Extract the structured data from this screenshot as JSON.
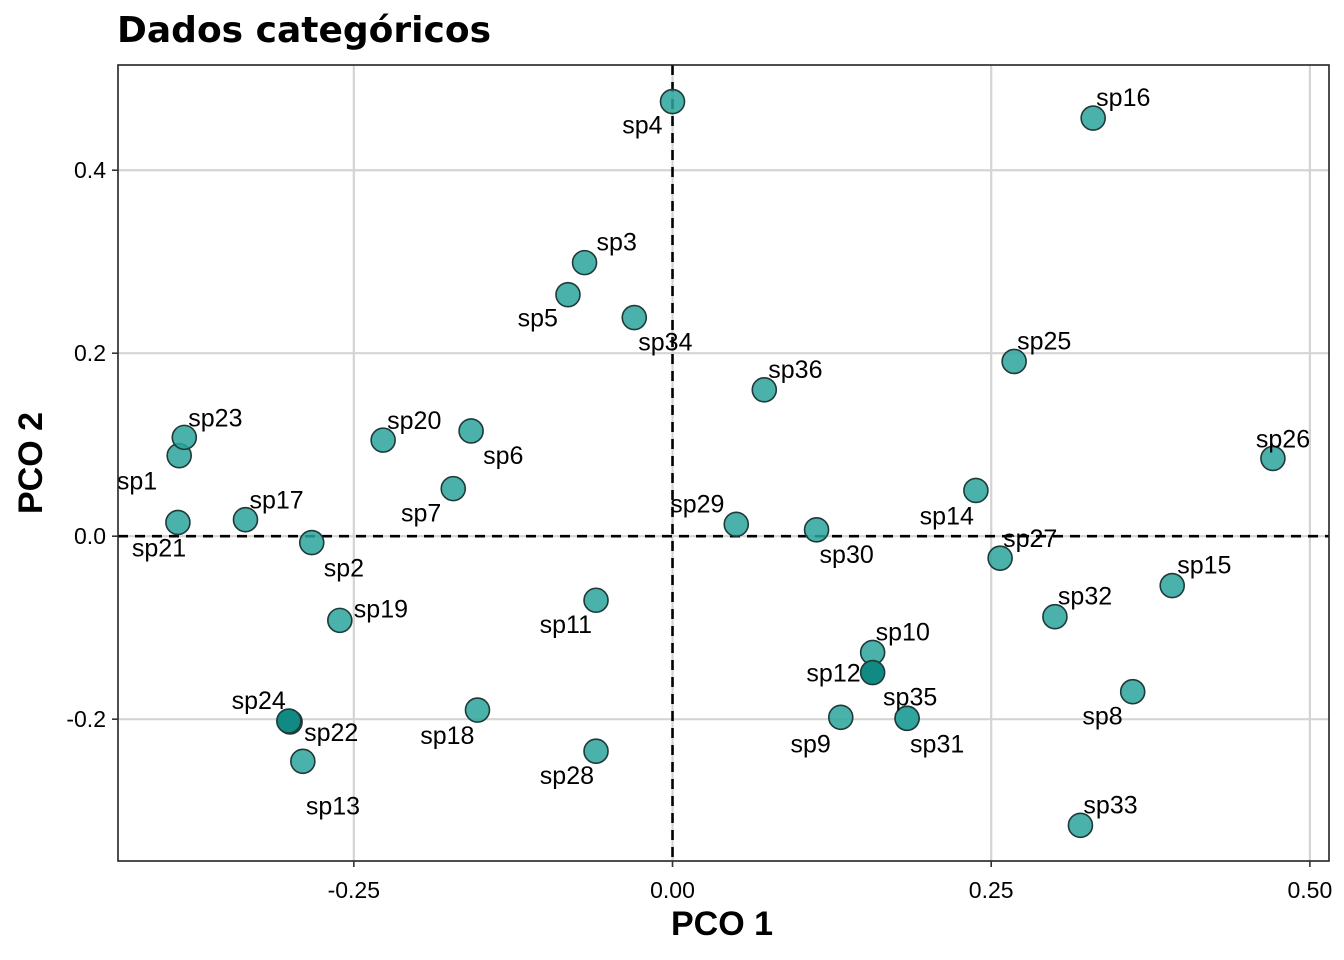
{
  "chart_data": {
    "type": "scatter",
    "title": "Dados categóricos",
    "xlabel": "PCO 1",
    "ylabel": "PCO 2",
    "xlim": [
      -0.435,
      0.515
    ],
    "ylim": [
      -0.355,
      0.515
    ],
    "xticks": [
      -0.25,
      0.0,
      0.25,
      0.5
    ],
    "xtick_labels": [
      "-0.25",
      "0.00",
      "0.25",
      "0.50"
    ],
    "yticks": [
      -0.2,
      0.0,
      0.2,
      0.4
    ],
    "ytick_labels": [
      "-0.2",
      "0.0",
      "0.2",
      "0.4"
    ],
    "grid": true,
    "reference_lines": {
      "x": 0,
      "y": 0,
      "style": "dashed"
    },
    "point_color": "#2ba39c",
    "point_edge": "#1f3a38",
    "points": [
      {
        "label": "sp1",
        "x": -0.387,
        "y": 0.088
      },
      {
        "label": "sp2",
        "x": -0.283,
        "y": -0.007
      },
      {
        "label": "sp3",
        "x": -0.069,
        "y": 0.299
      },
      {
        "label": "sp4",
        "x": 0.0,
        "y": 0.475
      },
      {
        "label": "sp5",
        "x": -0.082,
        "y": 0.264
      },
      {
        "label": "sp6",
        "x": -0.158,
        "y": 0.115
      },
      {
        "label": "sp7",
        "x": -0.172,
        "y": 0.052
      },
      {
        "label": "sp8",
        "x": 0.361,
        "y": -0.17
      },
      {
        "label": "sp9",
        "x": 0.132,
        "y": -0.198
      },
      {
        "label": "sp10",
        "x": 0.157,
        "y": -0.127
      },
      {
        "label": "sp11",
        "x": -0.06,
        "y": -0.07
      },
      {
        "label": "sp12",
        "x": 0.157,
        "y": -0.149
      },
      {
        "label": "sp13",
        "x": -0.29,
        "y": -0.246
      },
      {
        "label": "sp14",
        "x": 0.238,
        "y": 0.05
      },
      {
        "label": "sp15",
        "x": 0.392,
        "y": -0.054
      },
      {
        "label": "sp16",
        "x": 0.33,
        "y": 0.457
      },
      {
        "label": "sp17",
        "x": -0.335,
        "y": 0.018
      },
      {
        "label": "sp18",
        "x": -0.153,
        "y": -0.19
      },
      {
        "label": "sp19",
        "x": -0.261,
        "y": -0.092
      },
      {
        "label": "sp20",
        "x": -0.227,
        "y": 0.105
      },
      {
        "label": "sp21",
        "x": -0.388,
        "y": 0.015
      },
      {
        "label": "sp22",
        "x": -0.3,
        "y": -0.203
      },
      {
        "label": "sp23",
        "x": -0.383,
        "y": 0.108
      },
      {
        "label": "sp24",
        "x": -0.301,
        "y": -0.202
      },
      {
        "label": "sp25",
        "x": 0.268,
        "y": 0.191
      },
      {
        "label": "sp26",
        "x": 0.471,
        "y": 0.085
      },
      {
        "label": "sp27",
        "x": 0.257,
        "y": -0.024
      },
      {
        "label": "sp28",
        "x": -0.06,
        "y": -0.235
      },
      {
        "label": "sp29",
        "x": 0.05,
        "y": 0.013
      },
      {
        "label": "sp30",
        "x": 0.113,
        "y": 0.007
      },
      {
        "label": "sp31",
        "x": 0.184,
        "y": -0.199
      },
      {
        "label": "sp32",
        "x": 0.3,
        "y": -0.088
      },
      {
        "label": "sp33",
        "x": 0.32,
        "y": -0.316
      },
      {
        "label": "sp34",
        "x": -0.03,
        "y": 0.239
      },
      {
        "label": "sp35",
        "x": 0.184,
        "y": -0.199
      },
      {
        "label": "sp36",
        "x": 0.072,
        "y": 0.16
      }
    ]
  }
}
